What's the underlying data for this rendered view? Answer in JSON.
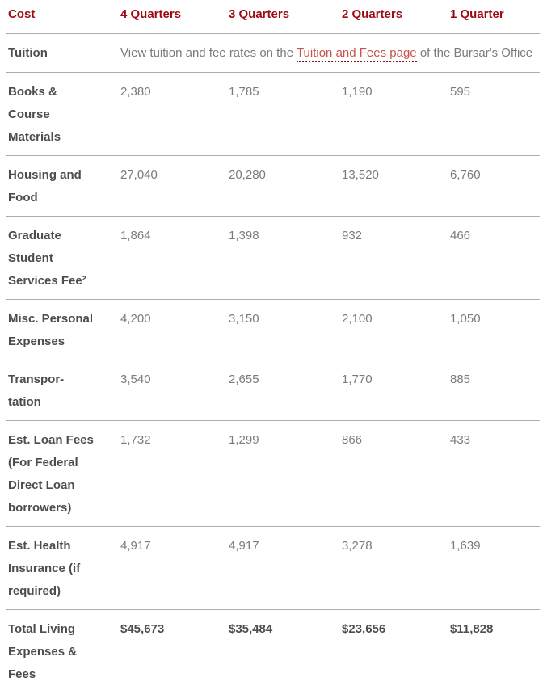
{
  "theme": {
    "header_color": "#9D0A12",
    "link_color": "#C5524C",
    "link_underline_color": "#7D1517",
    "label_color": "#4D4D4D",
    "value_color": "#7B7B7B",
    "divider_color": "#ACACAC"
  },
  "table": {
    "columns": [
      "Cost",
      "4 Quarters",
      "3 Quarters",
      "2 Quarters",
      "1 Quarter"
    ],
    "tuition_row": {
      "label": "Tuition",
      "note_prefix": "View tuition and fee rates on the ",
      "note_link": "Tuition and Fees page",
      "note_suffix": " of the Bursar's Office"
    },
    "rows": [
      {
        "label": "Books &\nCourse\nMaterials",
        "values": [
          "2,380",
          "1,785",
          "1,190",
          "595"
        ],
        "bold": false
      },
      {
        "label": "Housing and\nFood",
        "values": [
          "27,040",
          "20,280",
          "13,520",
          "6,760"
        ],
        "bold": false
      },
      {
        "label": "Graduate\nStudent\nServices Fee²",
        "values": [
          "1,864",
          "1,398",
          "932",
          "466"
        ],
        "bold": false
      },
      {
        "label": "Misc. Personal\nExpenses",
        "values": [
          "4,200",
          "3,150",
          "2,100",
          "1,050"
        ],
        "bold": false
      },
      {
        "label": "Transpor-\ntation",
        "values": [
          "3,540",
          "2,655",
          "1,770",
          "885"
        ],
        "bold": false
      },
      {
        "label": "Est. Loan Fees\n(For Federal\nDirect Loan\nborrowers)",
        "values": [
          "1,732",
          "1,299",
          "866",
          "433"
        ],
        "bold": false
      },
      {
        "label": "Est. Health\nInsurance (if\nrequired)",
        "values": [
          "4,917",
          "4,917",
          "3,278",
          "1,639"
        ],
        "bold": false
      },
      {
        "label": "Total Living\nExpenses &\nFees",
        "values": [
          "$45,673",
          "$35,484",
          "$23,656",
          "$11,828"
        ],
        "bold": true
      }
    ]
  }
}
